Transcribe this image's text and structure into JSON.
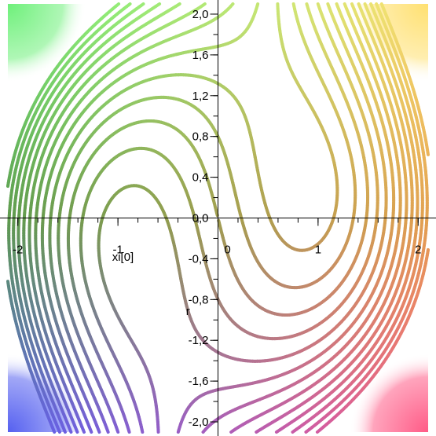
{
  "chart_data": {
    "type": "contour",
    "xlabel": "xi[0]",
    "ylabel": "r",
    "xlim": [
      -2.1,
      2.1
    ],
    "ylim": [
      -2.1,
      2.1
    ],
    "x_ticks": [
      -2,
      -1,
      0,
      1,
      2
    ],
    "x_tick_labels": [
      "-2",
      "-1",
      "0",
      "1",
      "2"
    ],
    "y_ticks": [
      2.0,
      1.6,
      1.2,
      0.8,
      0.4,
      0.0,
      -0.4,
      -0.8,
      -1.2,
      -1.6,
      -2.0
    ],
    "y_tick_labels": [
      "2,0",
      "1,6",
      "1,2",
      "0,8",
      "0,4",
      "0,0",
      "-0,4",
      "-0,8",
      "-1,2",
      "-1,6",
      "-2,0"
    ],
    "grid": false,
    "contour_levels": [
      -5.0,
      -4.5,
      -4.0,
      -3.5,
      -3.0,
      -2.5,
      -2.0,
      -1.5,
      -1.0,
      -0.5,
      0.0,
      0.5,
      1.0,
      1.5,
      2.0,
      2.5,
      3.0,
      3.5,
      4.0,
      4.5,
      5.0
    ],
    "colors": {
      "top_left": "#6ef07a",
      "top_right": "#ffe070",
      "bottom_left": "#5560f0",
      "bottom_right": "#ff5a86",
      "mid_left": "#5f9a4e",
      "mid_right": "#e2a050",
      "background": "#ffffff",
      "axis": "#000000"
    }
  }
}
